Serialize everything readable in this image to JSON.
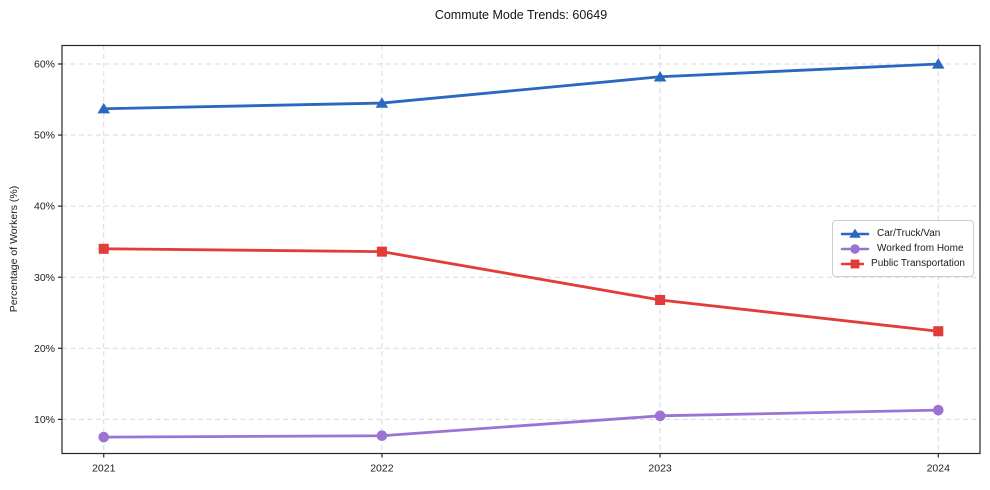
{
  "chart_data": {
    "type": "line",
    "title": "Commute Mode Trends: 60649",
    "xlabel": "",
    "ylabel": "Percentage of Workers (%)",
    "x": [
      2021,
      2022,
      2023,
      2024
    ],
    "x_tick_labels": [
      "2021",
      "2022",
      "2023",
      "2024"
    ],
    "y_ticks": [
      10,
      20,
      30,
      40,
      50,
      60
    ],
    "y_tick_labels": [
      "10%",
      "20%",
      "30%",
      "40%",
      "50%",
      "60%"
    ],
    "xlim": [
      2020.85,
      2024.15
    ],
    "ylim": [
      5.2,
      62.6
    ],
    "grid": true,
    "grid_style": "dashed",
    "legend_position": "center right",
    "series": [
      {
        "name": "Car/Truck/Van",
        "marker": "triangle",
        "color": "#2a67c1",
        "values": [
          53.7,
          54.5,
          58.2,
          60.0
        ]
      },
      {
        "name": "Worked from Home",
        "marker": "circle",
        "color": "#9b73d3",
        "values": [
          7.5,
          7.7,
          10.5,
          11.3
        ]
      },
      {
        "name": "Public Transportation",
        "marker": "square",
        "color": "#e23c3a",
        "values": [
          34.0,
          33.6,
          26.8,
          22.4
        ]
      }
    ],
    "style": {
      "grid_color": "#d9d9d9",
      "frame_color": "#262626",
      "text_color": "#1c1c1c",
      "background": "#ffffff"
    }
  }
}
